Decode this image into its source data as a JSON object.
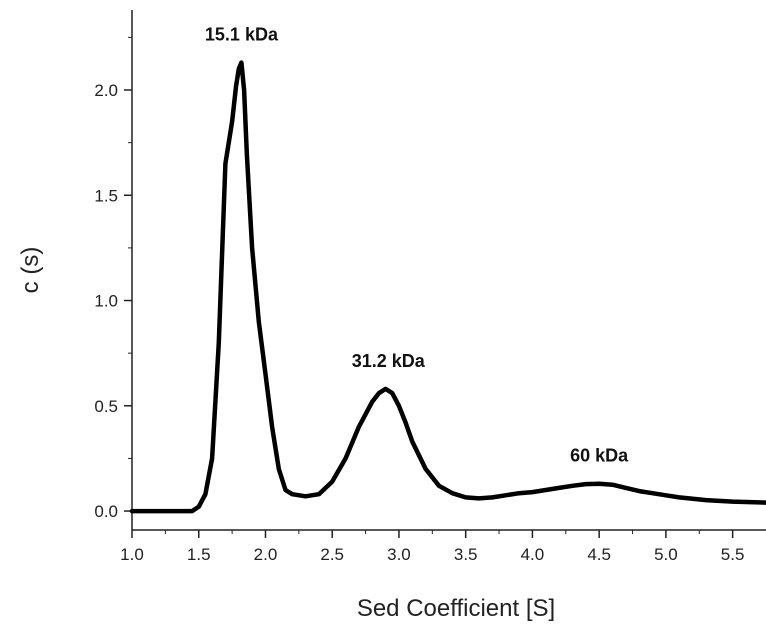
{
  "chart_data": {
    "type": "line",
    "title": "",
    "xlabel": "Sed Coefficient [S]",
    "ylabel": "c (s)",
    "xlim": [
      1.0,
      5.75
    ],
    "ylim": [
      -0.09,
      2.38
    ],
    "xticks": [
      "1.0",
      "1.5",
      "2.0",
      "2.5",
      "3.0",
      "3.5",
      "4.0",
      "4.5",
      "5.0",
      "5.5"
    ],
    "yticks": [
      "0.0",
      "0.5",
      "1.0",
      "1.5",
      "2.0"
    ],
    "grid": false,
    "legend": "none",
    "line_color": "#000000",
    "series": [
      {
        "x": [
          1.0,
          1.45,
          1.5,
          1.55,
          1.6,
          1.65,
          1.7,
          1.75,
          1.78,
          1.8,
          1.82,
          1.84,
          1.86,
          1.9,
          1.95,
          2.0,
          2.05,
          2.1,
          2.15,
          2.2,
          2.3,
          2.4,
          2.5,
          2.6,
          2.7,
          2.8,
          2.85,
          2.9,
          2.95,
          3.0,
          3.05,
          3.1,
          3.2,
          3.3,
          3.4,
          3.5,
          3.6,
          3.7,
          3.8,
          3.9,
          4.0,
          4.1,
          4.2,
          4.3,
          4.4,
          4.5,
          4.6,
          4.7,
          4.8,
          4.9,
          5.0,
          5.1,
          5.2,
          5.3,
          5.4,
          5.5,
          5.6,
          5.75
        ],
        "values": [
          0.0,
          0.0,
          0.02,
          0.08,
          0.25,
          0.8,
          1.65,
          1.85,
          2.02,
          2.1,
          2.13,
          2.0,
          1.7,
          1.25,
          0.9,
          0.65,
          0.4,
          0.2,
          0.1,
          0.08,
          0.07,
          0.08,
          0.14,
          0.25,
          0.4,
          0.52,
          0.56,
          0.58,
          0.56,
          0.5,
          0.42,
          0.33,
          0.2,
          0.12,
          0.085,
          0.065,
          0.06,
          0.065,
          0.075,
          0.085,
          0.09,
          0.1,
          0.11,
          0.12,
          0.128,
          0.13,
          0.125,
          0.11,
          0.095,
          0.085,
          0.075,
          0.065,
          0.058,
          0.052,
          0.048,
          0.045,
          0.043,
          0.04
        ]
      }
    ],
    "annotations": [
      {
        "text": "15.1 kDa",
        "x": 1.82,
        "y": 2.13
      },
      {
        "text": "31.2 kDa",
        "x": 2.92,
        "y": 0.58
      },
      {
        "text": "60 kDa",
        "x": 4.5,
        "y": 0.13
      }
    ]
  }
}
